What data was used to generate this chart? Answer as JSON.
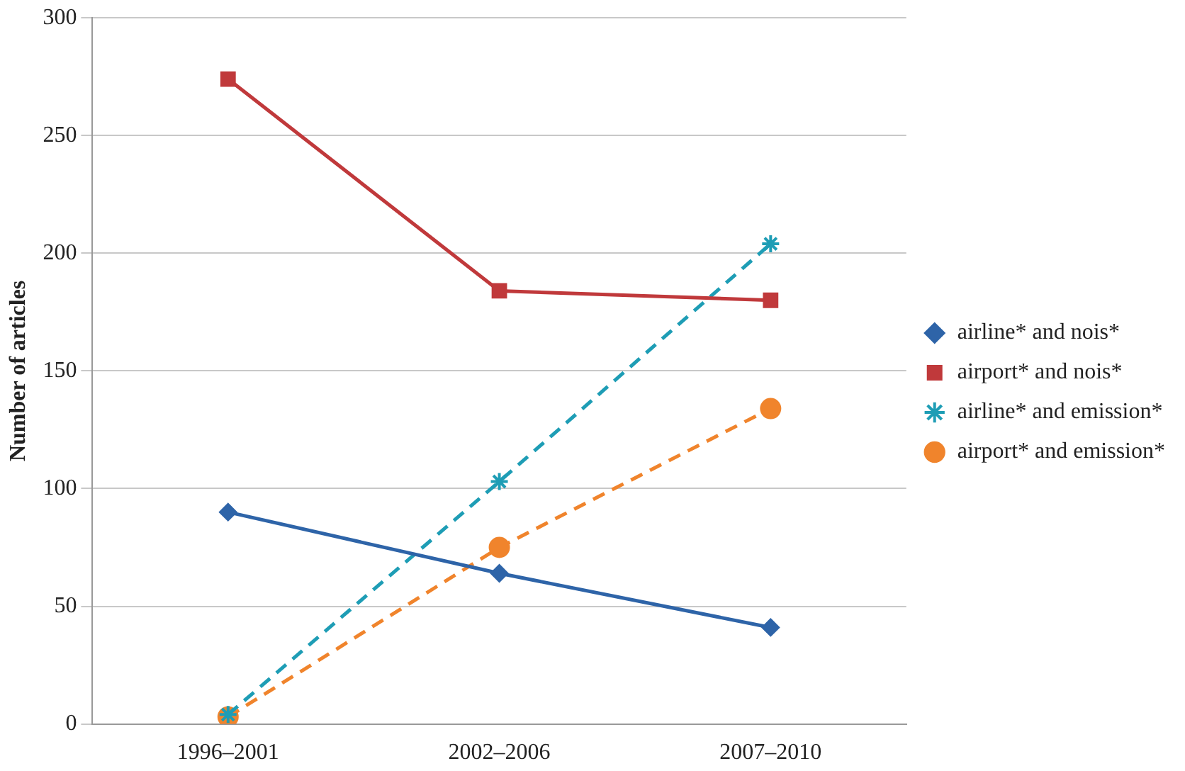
{
  "chart_data": {
    "type": "line",
    "ylabel": "Number of articles",
    "categories": [
      "1996–2001",
      "2002–2006",
      "2007–2010"
    ],
    "series": [
      {
        "name": "airline* and nois*",
        "color": "#2e64a8",
        "values": [
          90,
          64,
          41
        ],
        "marker": "diamond",
        "line_style": "solid"
      },
      {
        "name": "airport* and nois*",
        "color": "#c0393b",
        "values": [
          274,
          184,
          180
        ],
        "marker": "square",
        "line_style": "solid"
      },
      {
        "name": "airline* and emission*",
        "color": "#1e9db5",
        "values": [
          4,
          103,
          204
        ],
        "marker": "cross",
        "line_style": "dashed"
      },
      {
        "name": "airport* and emission*",
        "color": "#f0842c",
        "values": [
          3,
          75,
          134
        ],
        "marker": "circle",
        "line_style": "dashed"
      }
    ],
    "ylim": [
      0,
      300
    ],
    "yticks": [
      0,
      50,
      100,
      150,
      200,
      250,
      300
    ],
    "grid": "y",
    "legend": "right"
  }
}
